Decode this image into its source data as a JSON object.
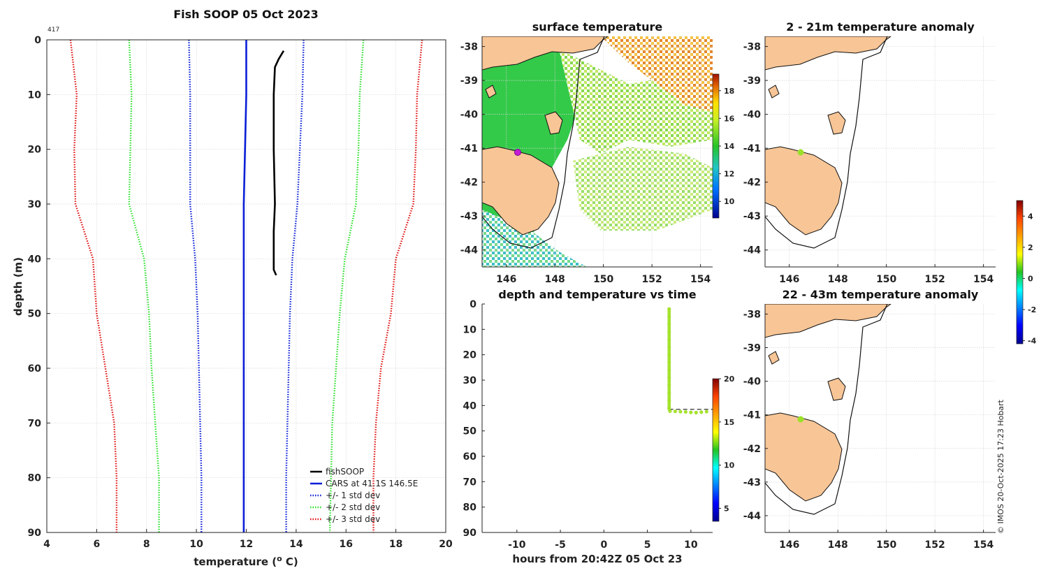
{
  "chart_data": [
    {
      "type": "line",
      "title": "Fish SOOP 05 Oct 2023",
      "note": "417",
      "xlabel": "temperature (o C)",
      "ylabel": "depth (m)",
      "xlim": [
        4,
        20
      ],
      "ylim": [
        0,
        90
      ],
      "xticks": [
        4,
        6,
        8,
        10,
        12,
        14,
        16,
        18,
        20
      ],
      "yticks": [
        0,
        10,
        20,
        30,
        40,
        50,
        60,
        70,
        80,
        90
      ],
      "legend_position": "bottom-right",
      "series": [
        {
          "name": "fishSOOP",
          "color": "#000000",
          "style": "solid",
          "points": [
            [
              13.5,
              2
            ],
            [
              13.3,
              3.5
            ],
            [
              13.15,
              5
            ],
            [
              13.1,
              10
            ],
            [
              13.1,
              20
            ],
            [
              13.15,
              30
            ],
            [
              13.1,
              35
            ],
            [
              13.1,
              40
            ],
            [
              13.1,
              42
            ],
            [
              13.2,
              43
            ]
          ]
        },
        {
          "name": "CARS at 41.1S 146.5E",
          "color": "#0a1fd8",
          "style": "solid",
          "points": [
            [
              12.0,
              0
            ],
            [
              12.0,
              10
            ],
            [
              11.95,
              20
            ],
            [
              11.9,
              30
            ],
            [
              11.9,
              40
            ],
            [
              11.9,
              50
            ],
            [
              11.9,
              60
            ],
            [
              11.9,
              70
            ],
            [
              11.9,
              80
            ],
            [
              11.9,
              90
            ]
          ]
        },
        {
          "name": "+/- 1 std dev",
          "color": "#0a1fd8",
          "style": "dotted",
          "points": [
            [
              9.7,
              0
            ],
            [
              9.75,
              10
            ],
            [
              9.75,
              20
            ],
            [
              9.75,
              30
            ],
            [
              9.95,
              40
            ],
            [
              10.05,
              50
            ],
            [
              10.1,
              60
            ],
            [
              10.15,
              70
            ],
            [
              10.2,
              80
            ],
            [
              10.2,
              90
            ]
          ]
        },
        {
          "name": "+/- 1 std dev (upper)",
          "color": "#0a1fd8",
          "style": "dotted",
          "points": [
            [
              14.3,
              0
            ],
            [
              14.25,
              10
            ],
            [
              14.15,
              20
            ],
            [
              14.05,
              30
            ],
            [
              13.85,
              40
            ],
            [
              13.75,
              50
            ],
            [
              13.7,
              60
            ],
            [
              13.65,
              70
            ],
            [
              13.6,
              80
            ],
            [
              13.6,
              90
            ]
          ]
        },
        {
          "name": "+/- 2 std dev",
          "color": "#29e029",
          "style": "dotted",
          "points": [
            [
              7.3,
              0
            ],
            [
              7.4,
              10
            ],
            [
              7.35,
              20
            ],
            [
              7.3,
              30
            ],
            [
              7.9,
              40
            ],
            [
              8.1,
              50
            ],
            [
              8.2,
              60
            ],
            [
              8.35,
              70
            ],
            [
              8.5,
              80
            ],
            [
              8.5,
              90
            ]
          ]
        },
        {
          "name": "+/- 2 std dev (upper)",
          "color": "#29e029",
          "style": "dotted",
          "points": [
            [
              16.7,
              0
            ],
            [
              16.55,
              10
            ],
            [
              16.5,
              20
            ],
            [
              16.4,
              30
            ],
            [
              15.95,
              40
            ],
            [
              15.75,
              50
            ],
            [
              15.6,
              60
            ],
            [
              15.45,
              70
            ],
            [
              15.4,
              80
            ],
            [
              15.35,
              90
            ]
          ]
        },
        {
          "name": "+/- 3 std dev",
          "color": "#e01010",
          "style": "dotted",
          "points": [
            [
              4.95,
              0
            ],
            [
              5.2,
              10
            ],
            [
              5.1,
              20
            ],
            [
              5.15,
              30
            ],
            [
              5.85,
              40
            ],
            [
              6.0,
              50
            ],
            [
              6.35,
              60
            ],
            [
              6.7,
              70
            ],
            [
              6.8,
              80
            ],
            [
              6.8,
              90
            ]
          ]
        },
        {
          "name": "+/- 3 std dev (upper)",
          "color": "#e01010",
          "style": "dotted",
          "points": [
            [
              19.05,
              0
            ],
            [
              18.85,
              10
            ],
            [
              18.8,
              20
            ],
            [
              18.7,
              30
            ],
            [
              18.0,
              40
            ],
            [
              17.8,
              50
            ],
            [
              17.4,
              60
            ],
            [
              17.2,
              70
            ],
            [
              17.1,
              80
            ],
            [
              17.1,
              90
            ]
          ]
        }
      ],
      "legend_entries": [
        {
          "label": "fishSOOP",
          "color": "#000000",
          "style": "solid"
        },
        {
          "label": "CARS at 41.1S 146.5E",
          "color": "#0a1fd8",
          "style": "solid"
        },
        {
          "label": "+/- 1 std dev",
          "color": "#0a1fd8",
          "style": "dotted"
        },
        {
          "label": "+/- 2 std dev",
          "color": "#29e029",
          "style": "dotted"
        },
        {
          "label": "+/- 3 std dev",
          "color": "#e01010",
          "style": "dotted"
        }
      ]
    },
    {
      "type": "heatmap",
      "title": "surface temperature",
      "xlim": [
        145,
        154.5
      ],
      "ylim": [
        -44.5,
        -37.7
      ],
      "xticks": [
        146,
        148,
        150,
        152,
        154
      ],
      "yticks": [
        -38,
        -39,
        -40,
        -41,
        -42,
        -43,
        -44
      ],
      "marker": {
        "lon": 146.5,
        "lat": -41.1,
        "color": "#c51bd6"
      },
      "colorbar": {
        "min": 8.8,
        "max": 19.2,
        "ticks": [
          10,
          12,
          14,
          16,
          18
        ]
      }
    },
    {
      "type": "scatter",
      "title": "depth and temperature vs time",
      "xlabel": "hours from 20:42Z 05 Oct 23",
      "xlim": [
        -14,
        12.5
      ],
      "ylim": [
        0,
        90
      ],
      "xticks": [
        -10,
        -5,
        0,
        5,
        10
      ],
      "yticks": [
        0,
        10,
        20,
        30,
        40,
        50,
        60,
        70,
        80,
        90
      ],
      "reference_depth": 41.5,
      "points": [
        [
          7.5,
          2
        ],
        [
          7.5,
          5
        ],
        [
          7.5,
          8
        ],
        [
          7.5,
          11
        ],
        [
          7.5,
          14
        ],
        [
          7.5,
          17
        ],
        [
          7.5,
          20
        ],
        [
          7.5,
          23
        ],
        [
          7.5,
          26
        ],
        [
          7.5,
          29
        ],
        [
          7.5,
          32
        ],
        [
          7.5,
          35
        ],
        [
          7.5,
          38
        ],
        [
          7.5,
          41
        ],
        [
          7.6,
          42.2
        ],
        [
          8.2,
          42.3
        ],
        [
          8.8,
          42.4
        ],
        [
          9.4,
          42.5
        ],
        [
          10.0,
          42.7
        ],
        [
          10.6,
          42.8
        ],
        [
          11.2,
          42.6
        ],
        [
          11.8,
          42.4
        ]
      ],
      "point_color": "#a6e22e",
      "colorbar": {
        "min": 3.5,
        "max": 20,
        "ticks": [
          5,
          10,
          15,
          20
        ]
      }
    },
    {
      "type": "heatmap",
      "title": "2 - 21m temperature anomaly",
      "xlim": [
        145,
        154.5
      ],
      "ylim": [
        -44.5,
        -37.7
      ],
      "xticks": [
        146,
        148,
        150,
        152,
        154
      ],
      "yticks": [
        -38,
        -39,
        -40,
        -41,
        -42,
        -43,
        -44
      ],
      "marker": {
        "lon": 146.5,
        "lat": -41.1,
        "color": "#9be02a"
      }
    },
    {
      "type": "heatmap",
      "title": "22 - 43m temperature anomaly",
      "xlim": [
        145,
        154.5
      ],
      "ylim": [
        -44.5,
        -37.7
      ],
      "xticks": [
        146,
        148,
        150,
        152,
        154
      ],
      "yticks": [
        -38,
        -39,
        -40,
        -41,
        -42,
        -43,
        -44
      ],
      "marker": {
        "lon": 146.5,
        "lat": -41.1,
        "color": "#9be02a"
      },
      "colorbar": {
        "min": -4.2,
        "max": 5.0,
        "ticks": [
          -4,
          -2,
          0,
          2,
          4
        ]
      }
    }
  ],
  "legend_labels": [
    "fishSOOP",
    "CARS at 41.1S 146.5E",
    "+/- 1 std dev",
    "+/- 2 std dev",
    "+/- 3 std dev"
  ],
  "copyright": "© IMOS 20-Oct-2025 17:23 Hobart"
}
